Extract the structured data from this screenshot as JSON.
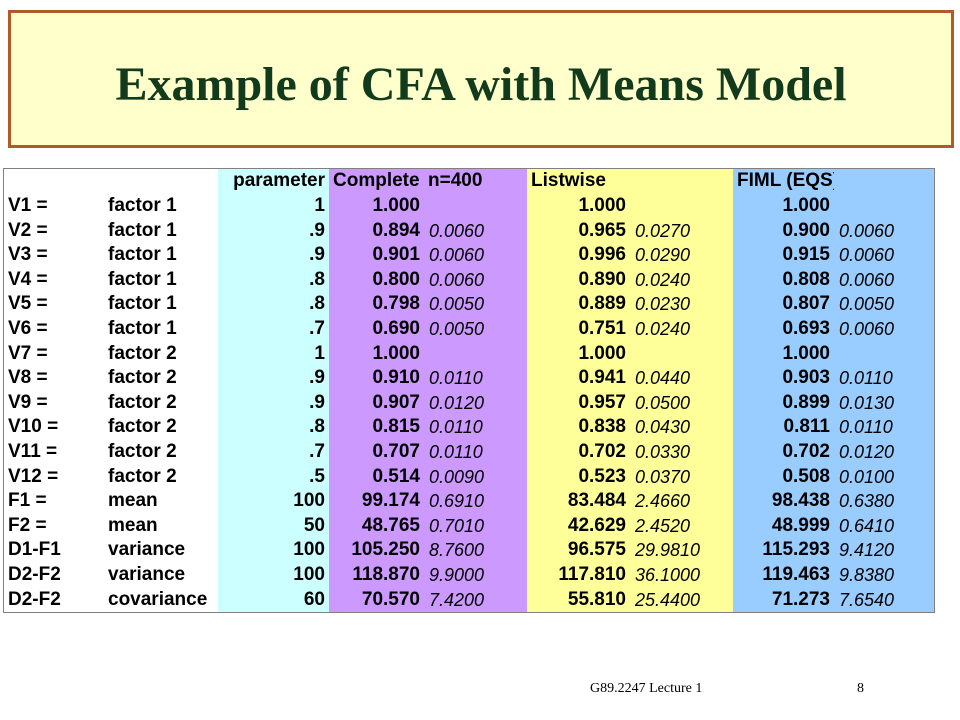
{
  "slide": {
    "title": "Example of CFA with Means Model",
    "footer_course": "G89.2247 Lecture 1",
    "page_number": "8"
  },
  "table": {
    "headers": [
      "",
      "",
      "parameter",
      "Complete",
      "n=400",
      "Listwise",
      "",
      "FIML (EQS)",
      ""
    ],
    "rows": [
      [
        "V1  =",
        "factor 1",
        "1",
        "1.000",
        "",
        "1.000",
        "",
        "1.000",
        ""
      ],
      [
        "V2  =",
        "factor 1",
        ".9",
        "0.894",
        "0.0060",
        "0.965",
        "0.0270",
        "0.900",
        "0.0060"
      ],
      [
        "V3  =",
        "factor 1",
        ".9",
        "0.901",
        "0.0060",
        "0.996",
        "0.0290",
        "0.915",
        "0.0060"
      ],
      [
        "V4  =",
        "factor 1",
        ".8",
        "0.800",
        "0.0060",
        "0.890",
        "0.0240",
        "0.808",
        "0.0060"
      ],
      [
        "V5  =",
        "factor 1",
        ".8",
        "0.798",
        "0.0050",
        "0.889",
        "0.0230",
        "0.807",
        "0.0050"
      ],
      [
        "V6  =",
        "factor 1",
        ".7",
        "0.690",
        "0.0050",
        "0.751",
        "0.0240",
        "0.693",
        "0.0060"
      ],
      [
        "V7  =",
        "factor 2",
        "1",
        "1.000",
        "",
        "1.000",
        "",
        "1.000",
        ""
      ],
      [
        "V8  =",
        "factor 2",
        ".9",
        "0.910",
        "0.0110",
        "0.941",
        "0.0440",
        "0.903",
        "0.0110"
      ],
      [
        "V9  =",
        "factor 2",
        ".9",
        "0.907",
        "0.0120",
        "0.957",
        "0.0500",
        "0.899",
        "0.0130"
      ],
      [
        "V10 =",
        "factor 2",
        ".8",
        "0.815",
        "0.0110",
        "0.838",
        "0.0430",
        "0.811",
        "0.0110"
      ],
      [
        "V11 =",
        "factor 2",
        ".7",
        "0.707",
        "0.0110",
        "0.702",
        "0.0330",
        "0.702",
        "0.0120"
      ],
      [
        "V12 =",
        "factor 2",
        ".5",
        "0.514",
        "0.0090",
        "0.523",
        "0.0370",
        "0.508",
        "0.0100"
      ],
      [
        "F1  =",
        "mean",
        "100",
        "99.174",
        "0.6910",
        "83.484",
        "2.4660",
        "98.438",
        "0.6380"
      ],
      [
        "F2  =",
        "mean",
        "50",
        "48.765",
        "0.7010",
        "42.629",
        "2.4520",
        "48.999",
        "0.6410"
      ],
      [
        "D1-F1",
        "variance",
        "100",
        "105.250",
        "8.7600",
        "96.575",
        "29.9810",
        "115.293",
        "9.4120"
      ],
      [
        "D2-F2",
        "variance",
        "100",
        "118.870",
        "9.9000",
        "117.810",
        "36.1000",
        "119.463",
        "9.8380"
      ],
      [
        "D2-F2",
        "covariance",
        "60",
        "70.570",
        "7.4200",
        "55.810",
        "25.4400",
        "71.273",
        "7.6540"
      ]
    ]
  }
}
